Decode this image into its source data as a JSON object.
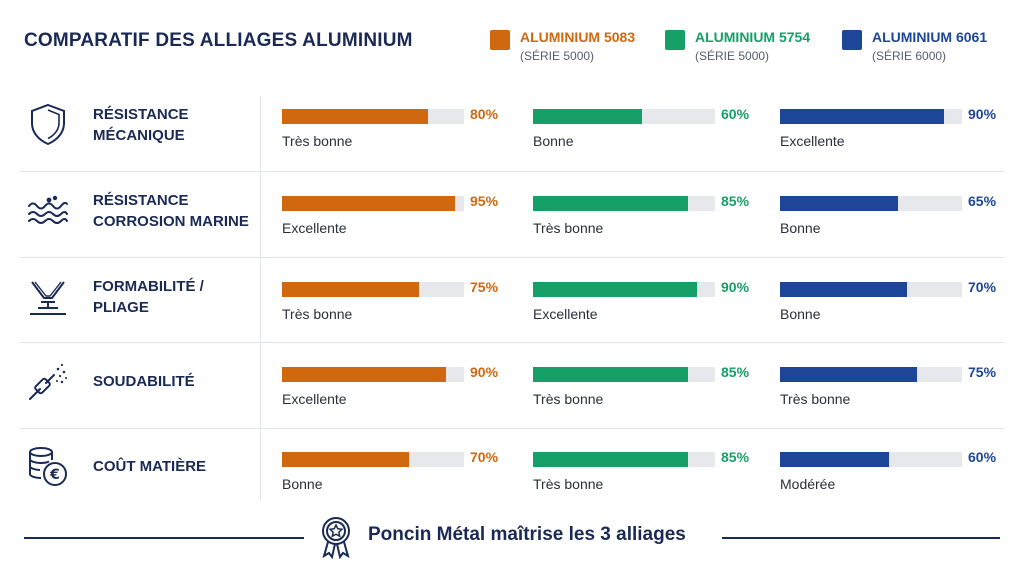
{
  "header": {
    "title": "COMPARATIF DES ALLIAGES ALUMINIUM"
  },
  "chart_data": {
    "type": "bar",
    "orientation": "horizontal",
    "value_unit": "%",
    "xlim": [
      0,
      100
    ],
    "grid": false,
    "legend_position": "top-right",
    "categories": [
      {
        "label": [
          "RÉSISTANCE",
          "MÉCANIQUE"
        ],
        "icon": "shield-icon"
      },
      {
        "label": [
          "RÉSISTANCE",
          "CORROSION MARINE"
        ],
        "icon": "waves-icon"
      },
      {
        "label": [
          "FORMABILITÉ /",
          "PLIAGE"
        ],
        "icon": "bending-press-icon"
      },
      {
        "label": [
          "SOUDABILITÉ"
        ],
        "icon": "welding-torch-icon"
      },
      {
        "label": [
          "COÛT MATIÈRE"
        ],
        "icon": "coins-euro-icon"
      }
    ],
    "series": [
      {
        "name": "ALUMINIUM 5083",
        "subtitle": "(SÉRIE 5000)",
        "color": "#d0680f",
        "values": [
          80,
          95,
          75,
          90,
          70
        ],
        "ratings": [
          "Très bonne",
          "Excellente",
          "Très bonne",
          "Excellente",
          "Bonne"
        ]
      },
      {
        "name": "ALUMINIUM 5754",
        "subtitle": "(SÉRIE 5000)",
        "color": "#16a067",
        "values": [
          60,
          85,
          90,
          85,
          85
        ],
        "ratings": [
          "Bonne",
          "Très bonne",
          "Excellente",
          "Très bonne",
          "Très bonne"
        ]
      },
      {
        "name": "ALUMINIUM 6061",
        "subtitle": "(SÉRIE 6000)",
        "color": "#1d4699",
        "values": [
          90,
          65,
          70,
          75,
          60
        ],
        "ratings": [
          "Excellente",
          "Bonne",
          "Bonne",
          "Très bonne",
          "Modérée"
        ]
      }
    ]
  },
  "footer": {
    "text": "Poncin Métal maîtrise les 3 alliages",
    "icon": "award-ribbon-icon"
  }
}
